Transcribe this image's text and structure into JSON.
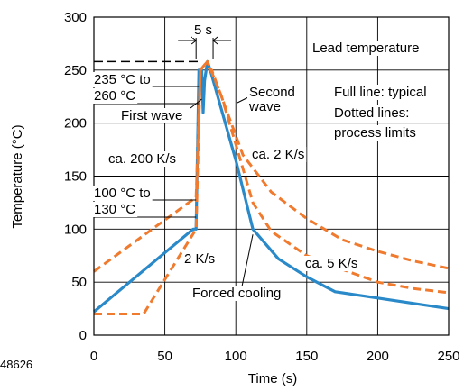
{
  "chart_data": {
    "type": "line",
    "title": "",
    "xlabel": "Time (s)",
    "ylabel": "Temperature (°C)",
    "xlim": [
      0,
      250
    ],
    "ylim": [
      0,
      300
    ],
    "xticks": [
      0,
      50,
      100,
      150,
      200,
      250
    ],
    "yticks": [
      0,
      50,
      100,
      150,
      200,
      250,
      300
    ],
    "grid": true,
    "figure_id": "48626",
    "colors": {
      "typical": "#2a89c8",
      "limits": "#f07a2e",
      "grid": "#000000"
    },
    "series": [
      {
        "style": "solid",
        "points": [
          [
            0,
            22
          ],
          [
            70,
            100
          ],
          [
            72,
            100
          ],
          [
            74,
            250
          ],
          [
            76,
            250
          ],
          [
            77,
            210
          ],
          [
            78,
            240
          ],
          [
            80,
            258
          ],
          [
            82,
            250
          ],
          [
            100,
            165
          ],
          [
            112,
            100
          ],
          [
            130,
            72
          ],
          [
            150,
            55
          ],
          [
            170,
            41
          ],
          [
            200,
            35
          ],
          [
            225,
            30
          ],
          [
            250,
            25
          ]
        ]
      },
      {
        "style": "dashed",
        "points": [
          [
            0,
            60
          ],
          [
            72,
            130
          ],
          [
            75,
            250
          ],
          [
            78,
            255
          ],
          [
            83,
            250
          ],
          [
            105,
            170
          ],
          [
            125,
            135
          ],
          [
            150,
            110
          ],
          [
            175,
            90
          ],
          [
            200,
            79
          ],
          [
            225,
            70
          ],
          [
            250,
            63
          ]
        ]
      },
      {
        "style": "dashed",
        "points": [
          [
            0,
            20
          ],
          [
            35,
            20
          ],
          [
            72,
            100
          ],
          [
            75,
            250
          ],
          [
            80,
            258
          ],
          [
            90,
            225
          ],
          [
            100,
            180
          ],
          [
            112,
            125
          ],
          [
            125,
            98
          ],
          [
            150,
            75
          ],
          [
            175,
            62
          ],
          [
            200,
            50
          ],
          [
            225,
            44
          ],
          [
            250,
            40
          ]
        ]
      }
    ],
    "annotations": [
      {
        "id": "five-s",
        "text": "5 s"
      },
      {
        "id": "lead-temp",
        "text": "Lead temperature"
      },
      {
        "id": "range-high-1",
        "text": "235 °C to"
      },
      {
        "id": "range-high-2",
        "text": "260 °C"
      },
      {
        "id": "first-wave",
        "text": "First wave"
      },
      {
        "id": "second-wave-1",
        "text": "Second"
      },
      {
        "id": "second-wave-2",
        "text": "wave"
      },
      {
        "id": "full-line",
        "text": "Full line: typical"
      },
      {
        "id": "dotted-1",
        "text": "Dotted lines:"
      },
      {
        "id": "dotted-2",
        "text": "process limits"
      },
      {
        "id": "rate-200",
        "text": "ca. 200 K/s"
      },
      {
        "id": "rate-2-upper",
        "text": "ca. 2 K/s"
      },
      {
        "id": "range-low-1",
        "text": "100 °C to"
      },
      {
        "id": "range-low-2",
        "text": "130 °C"
      },
      {
        "id": "rate-2-lower",
        "text": "2 K/s"
      },
      {
        "id": "rate-5",
        "text": "ca. 5 K/s"
      },
      {
        "id": "forced-cooling",
        "text": "Forced cooling"
      }
    ]
  }
}
